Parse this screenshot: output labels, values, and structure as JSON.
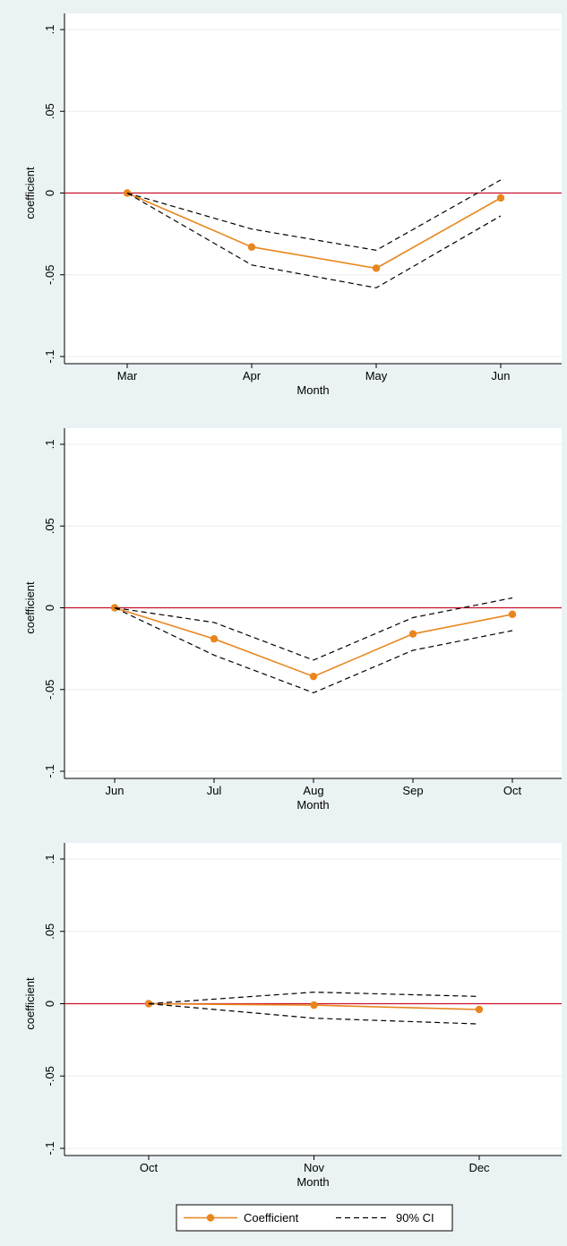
{
  "colors": {
    "panel_bg": "#eaf2f3",
    "plot_bg": "#ffffff",
    "grid": "#e8eef0",
    "zero_line": "#c8102e",
    "coefficient": "#e8861e",
    "ci": "#000000",
    "axis": "#000000"
  },
  "chart_data": [
    {
      "type": "line",
      "ylabel": "coefficient",
      "xlabel": "Month",
      "categories": [
        "Mar",
        "Apr",
        "May",
        "Jun"
      ],
      "ylim": [
        -0.1,
        0.1
      ],
      "yticks": [
        0.1,
        0.05,
        0,
        -0.05,
        -0.1
      ],
      "ytick_labels": [
        ".1",
        ".05",
        "0",
        "-.05",
        "-.1"
      ],
      "grid": true,
      "reference_line": 0,
      "series": [
        {
          "name": "Coefficient",
          "values": [
            0,
            -0.033,
            -0.046,
            -0.003
          ]
        },
        {
          "name": "90% CI",
          "values": [
            0,
            -0.022,
            -0.035,
            0.008
          ]
        },
        {
          "values": [
            0,
            -0.044,
            -0.058,
            -0.014
          ]
        }
      ]
    },
    {
      "type": "line",
      "ylabel": "coefficient",
      "xlabel": "Month",
      "categories": [
        "Jun",
        "Jul",
        "Aug",
        "Sep",
        "Oct"
      ],
      "ylim": [
        -0.1,
        0.1
      ],
      "yticks": [
        0.1,
        0.05,
        0,
        -0.05,
        -0.1
      ],
      "ytick_labels": [
        ".1",
        ".05",
        "0",
        "-.05",
        "-.1"
      ],
      "grid": true,
      "reference_line": 0,
      "series": [
        {
          "name": "Coefficient",
          "values": [
            0,
            -0.019,
            -0.042,
            -0.016,
            -0.004
          ]
        },
        {
          "name": "90% CI",
          "values": [
            0,
            -0.009,
            -0.032,
            -0.006,
            0.006
          ]
        },
        {
          "values": [
            0,
            -0.029,
            -0.052,
            -0.026,
            -0.014
          ]
        }
      ]
    },
    {
      "type": "line",
      "ylabel": "coefficient",
      "xlabel": "Month",
      "categories": [
        "Oct",
        "Nov",
        "Dec"
      ],
      "ylim": [
        -0.1,
        0.1
      ],
      "yticks": [
        0.1,
        0.05,
        0,
        -0.05,
        -0.1
      ],
      "ytick_labels": [
        ".1",
        ".05",
        "0",
        "-.05",
        "-.1"
      ],
      "grid": true,
      "reference_line": 0,
      "series": [
        {
          "name": "Coefficient",
          "values": [
            0,
            -0.001,
            -0.004
          ]
        },
        {
          "name": "90% CI",
          "values": [
            0,
            0.008,
            0.005
          ]
        },
        {
          "values": [
            0,
            -0.01,
            -0.014
          ]
        }
      ]
    }
  ],
  "legend": {
    "position": "bottom",
    "items": [
      {
        "label": "Coefficient",
        "style": "solid-marker"
      },
      {
        "label": "90% CI",
        "style": "dashed"
      }
    ]
  }
}
